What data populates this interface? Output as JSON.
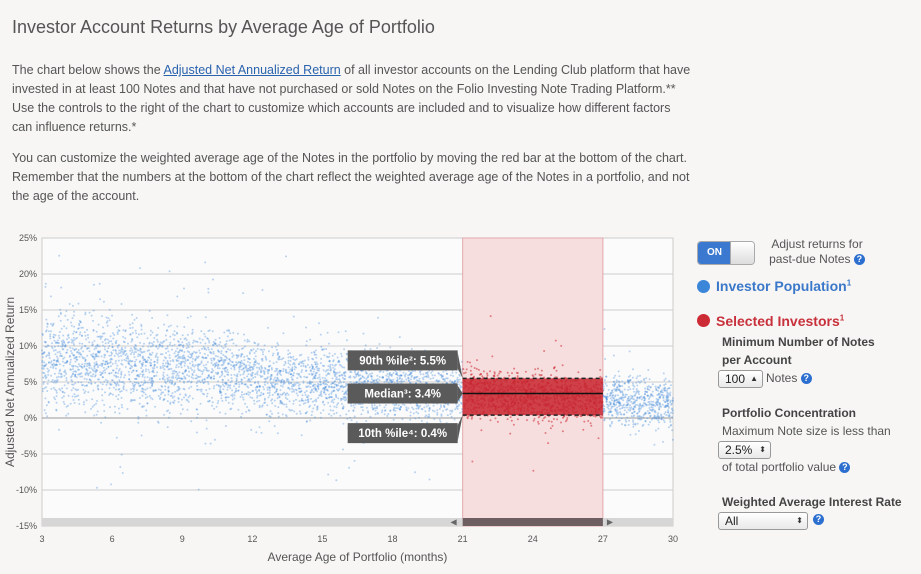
{
  "page": {
    "title": "Investor Account Returns by Average Age of Portfolio",
    "p1_pre": "The chart below shows the ",
    "p1_link": "Adjusted Net Annualized Return",
    "p1_post": " of all investor accounts on the Lending Club platform that have invested in at least 100 Notes and that have not purchased or sold Notes on the Folio Investing Note Trading Platform.** Use the controls to the right of the chart to customize which accounts are included and to visualize how different factors can influence returns.*",
    "p2": "You can customize the weighted average age of the Notes in the portfolio by moving the red bar at the bottom of the chart. Remember that the numbers at the bottom of the chart reflect the weighted average age of the Notes in a portfolio, and not the age of the account."
  },
  "controls": {
    "toggle_label": "ON",
    "adjust_label": "Adjust returns for past-due Notes",
    "population_label": "Investor Population",
    "population_sup": "1",
    "selected_label": "Selected Investors",
    "selected_sup": "1",
    "min_notes_head": "Minimum Number of Notes per Account",
    "min_notes_value": "100",
    "min_notes_suffix": "Notes",
    "concentration_head": "Portfolio Concentration",
    "concentration_text": "Maximum Note size is less than",
    "concentration_value": "2.5%",
    "concentration_suffix": "of total portfolio value",
    "rate_head": "Weighted Average Interest Rate",
    "rate_value": "All",
    "help_glyph": "?",
    "colors": {
      "population": "#3b86d9",
      "selected": "#cc2b35",
      "toggle_on": "#3b79d1"
    }
  },
  "chart_data": {
    "type": "scatter",
    "xlabel": "Average Age of Portfolio (months)",
    "ylabel": "Adjusted Net Annualized Return",
    "xlim": [
      3,
      30
    ],
    "ylim": [
      -15,
      25
    ],
    "x_ticks": [
      "3",
      "6",
      "9",
      "12",
      "15",
      "18",
      "21",
      "24",
      "27",
      "30"
    ],
    "y_ticks": [
      "25%",
      "20%",
      "15%",
      "10%",
      "5%",
      "0%",
      "-5%",
      "-10%",
      "-15%"
    ],
    "y_tick_values": [
      25,
      20,
      15,
      10,
      5,
      0,
      -5,
      -10,
      -15
    ],
    "grid": true,
    "selection": {
      "x_from": 21,
      "x_to": 27
    },
    "stats": [
      {
        "label": "90th %ile",
        "sup": "²",
        "value": 5.5,
        "text": "90th %ile²: 5.5%"
      },
      {
        "label": "Median",
        "sup": "³",
        "value": 3.4,
        "text": "Median³: 3.4%"
      },
      {
        "label": "10th %ile",
        "sup": "⁴",
        "value": 0.4,
        "text": "10th %ile⁴: 0.4%"
      }
    ],
    "series": [
      {
        "name": "Investor Population",
        "color": "#3b86d9"
      },
      {
        "name": "Selected Investors",
        "color": "#cc2b35"
      }
    ]
  }
}
